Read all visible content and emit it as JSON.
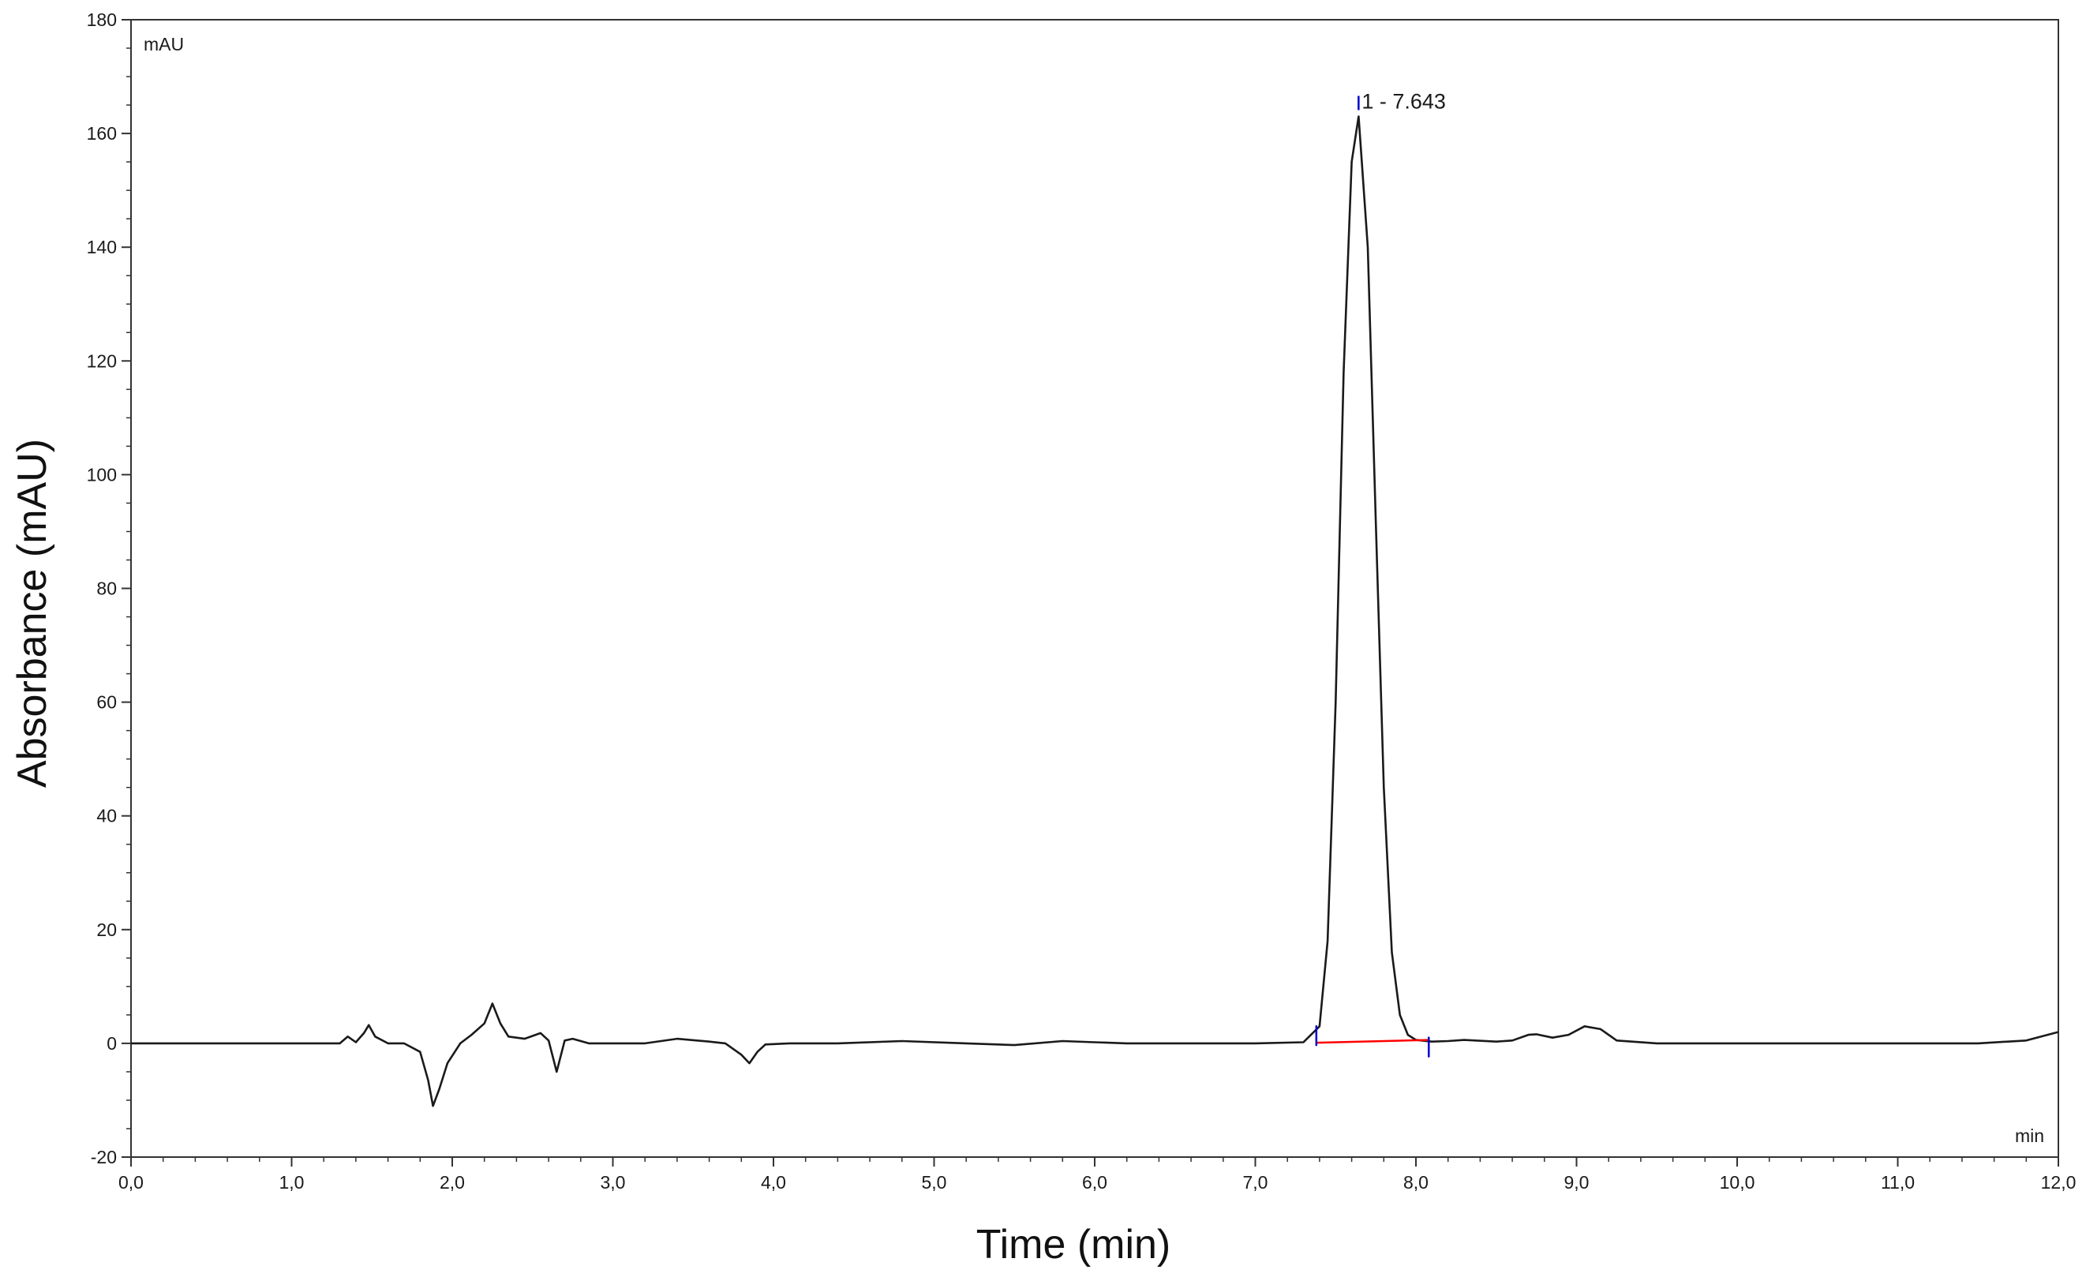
{
  "chart_data": {
    "type": "line",
    "title": "",
    "xlabel": "Time (min)",
    "ylabel": "Absorbance (mAU)",
    "x_unit_label": "min",
    "y_unit_label": "mAU",
    "xlim": [
      0,
      12
    ],
    "ylim": [
      -20,
      180
    ],
    "x_ticks": [
      0,
      1,
      2,
      3,
      4,
      5,
      6,
      7,
      8,
      9,
      10,
      11,
      12
    ],
    "x_tick_labels": [
      "0,0",
      "1,0",
      "2,0",
      "3,0",
      "4,0",
      "5,0",
      "6,0",
      "7,0",
      "8,0",
      "9,0",
      "10,0",
      "11,0",
      "12,0"
    ],
    "y_ticks": [
      -20,
      0,
      20,
      40,
      60,
      80,
      100,
      120,
      140,
      160,
      180
    ],
    "y_tick_labels": [
      "-20",
      "0",
      "20",
      "40",
      "60",
      "80",
      "100",
      "120",
      "140",
      "160",
      "180"
    ],
    "grid": false,
    "series": [
      {
        "color": "#1a1a1a",
        "x": [
          0.0,
          0.5,
          1.0,
          1.3,
          1.35,
          1.4,
          1.45,
          1.48,
          1.52,
          1.6,
          1.7,
          1.8,
          1.85,
          1.88,
          1.92,
          1.97,
          2.05,
          2.12,
          2.2,
          2.25,
          2.3,
          2.35,
          2.45,
          2.55,
          2.6,
          2.65,
          2.7,
          2.75,
          2.85,
          3.0,
          3.2,
          3.4,
          3.6,
          3.7,
          3.8,
          3.85,
          3.9,
          3.95,
          4.1,
          4.4,
          4.8,
          5.2,
          5.5,
          5.8,
          6.0,
          6.2,
          6.6,
          7.0,
          7.3,
          7.4,
          7.45,
          7.5,
          7.55,
          7.6,
          7.643,
          7.7,
          7.75,
          7.8,
          7.85,
          7.9,
          7.95,
          8.0,
          8.1,
          8.2,
          8.3,
          8.5,
          8.6,
          8.7,
          8.75,
          8.85,
          8.95,
          9.05,
          9.15,
          9.25,
          9.5,
          10.0,
          10.5,
          11.0,
          11.5,
          11.8,
          12.0
        ],
        "y": [
          0,
          0,
          0,
          0,
          1.2,
          0.2,
          1.8,
          3.2,
          1.2,
          0,
          0,
          -1.5,
          -6.5,
          -11,
          -8,
          -3.5,
          0,
          1.5,
          3.5,
          7,
          3.5,
          1.2,
          0.8,
          1.8,
          0.5,
          -5,
          0.5,
          0.8,
          0,
          0,
          0,
          0.8,
          0.3,
          0,
          -2,
          -3.5,
          -1.5,
          -0.2,
          0,
          0,
          0.4,
          0,
          -0.3,
          0.4,
          0.2,
          0,
          0,
          0,
          0.2,
          3,
          18,
          60,
          118,
          155,
          163,
          140,
          92,
          45,
          16,
          5,
          1.5,
          0.6,
          0.3,
          0.4,
          0.6,
          0.3,
          0.5,
          1.5,
          1.6,
          1,
          1.5,
          3,
          2.5,
          0.5,
          0,
          0,
          0,
          0,
          0,
          0.5,
          2
        ]
      }
    ],
    "peaks": [
      {
        "label": "1 - 7.643",
        "apex_x": 7.643,
        "apex_y": 163,
        "start_x": 7.38,
        "end_x": 8.08,
        "baseline_color": "#ff0000",
        "marker_color": "#0000cc"
      }
    ]
  }
}
